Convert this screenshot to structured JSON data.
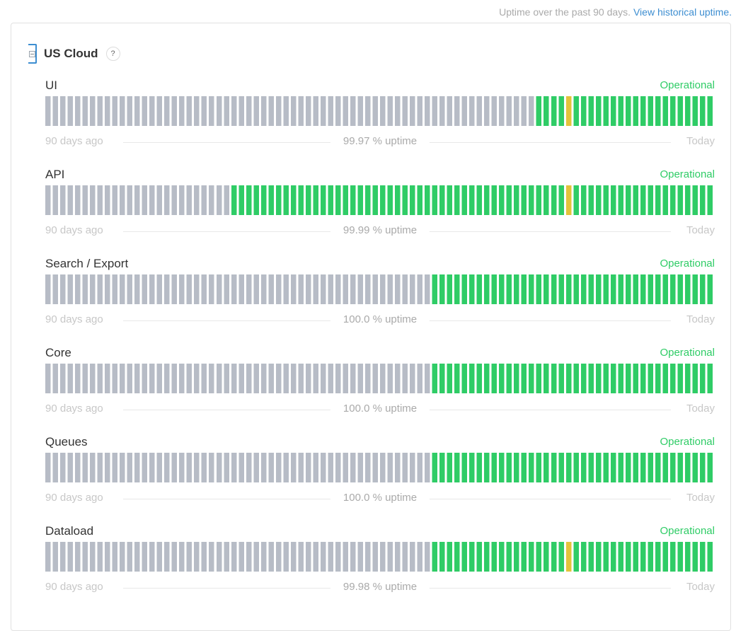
{
  "header": {
    "note": "Uptime over the past 90 days.",
    "link": "View historical uptime."
  },
  "colors": {
    "no_data": "#b7bcc6",
    "operational": "#2fcc66",
    "minor_outage": "#e3c33b"
  },
  "group": {
    "name": "US Cloud",
    "help": "?",
    "icon": "collapse-icon",
    "help_icon": "question-circle-icon"
  },
  "components": [
    {
      "name": "UI",
      "status": "Operational",
      "uptime": "99.97 % uptime",
      "left": "90 days ago",
      "right": "Today",
      "no_data_days": 66,
      "minor_days": [
        70
      ]
    },
    {
      "name": "API",
      "status": "Operational",
      "uptime": "99.99 % uptime",
      "left": "90 days ago",
      "right": "Today",
      "no_data_days": 25,
      "minor_days": [
        70
      ]
    },
    {
      "name": "Search / Export",
      "status": "Operational",
      "uptime": "100.0 % uptime",
      "left": "90 days ago",
      "right": "Today",
      "no_data_days": 52,
      "minor_days": []
    },
    {
      "name": "Core",
      "status": "Operational",
      "uptime": "100.0 % uptime",
      "left": "90 days ago",
      "right": "Today",
      "no_data_days": 52,
      "minor_days": []
    },
    {
      "name": "Queues",
      "status": "Operational",
      "uptime": "100.0 % uptime",
      "left": "90 days ago",
      "right": "Today",
      "no_data_days": 52,
      "minor_days": []
    },
    {
      "name": "Dataload",
      "status": "Operational",
      "uptime": "99.98 % uptime",
      "left": "90 days ago",
      "right": "Today",
      "no_data_days": 52,
      "minor_days": [
        70
      ]
    }
  ]
}
